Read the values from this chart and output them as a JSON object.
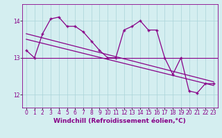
{
  "x": [
    0,
    1,
    2,
    3,
    4,
    5,
    6,
    7,
    8,
    9,
    10,
    11,
    12,
    13,
    14,
    15,
    16,
    17,
    18,
    19,
    20,
    21,
    22,
    23
  ],
  "y": [
    13.2,
    13.0,
    13.65,
    14.05,
    14.1,
    13.85,
    13.85,
    13.7,
    13.45,
    13.2,
    13.0,
    13.0,
    13.75,
    13.85,
    14.0,
    13.75,
    13.75,
    13.0,
    12.55,
    13.0,
    12.1,
    12.05,
    12.3,
    12.3
  ],
  "trend1_x": [
    0,
    23
  ],
  "trend1_y": [
    13.65,
    12.35
  ],
  "trend2_x": [
    0,
    23
  ],
  "trend2_y": [
    13.5,
    12.25
  ],
  "hline_y": 13.0,
  "line_color": "#880088",
  "bg_color": "#d4eef0",
  "grid_color": "#aad4d8",
  "xlabel": "Windchill (Refroidissement éolien,°C)",
  "xlim": [
    -0.5,
    23.5
  ],
  "ylim": [
    11.65,
    14.45
  ],
  "yticks": [
    12,
    13,
    14
  ],
  "xticks": [
    0,
    1,
    2,
    3,
    4,
    5,
    6,
    7,
    8,
    9,
    10,
    11,
    12,
    13,
    14,
    15,
    16,
    17,
    18,
    19,
    20,
    21,
    22,
    23
  ],
  "tick_fontsize": 5.5,
  "xlabel_fontsize": 6.5
}
